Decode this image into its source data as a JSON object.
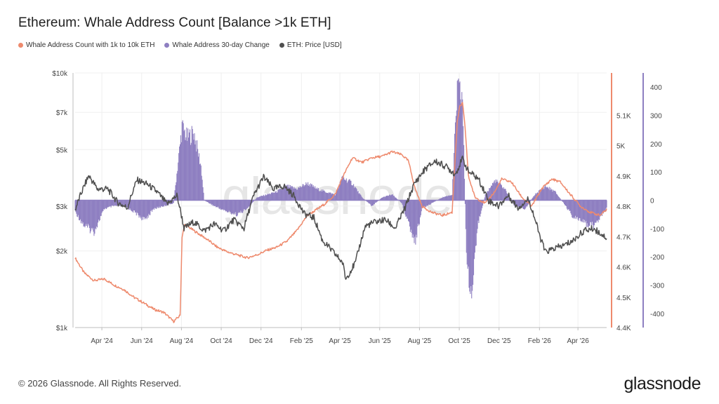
{
  "title": "Ethereum: Whale Address Count [Balance >1k ETH]",
  "legend": [
    {
      "label": "Whale Address Count with 1k to 10k ETH",
      "color": "#ee8a6d"
    },
    {
      "label": "Whale Address 30-day Change",
      "color": "#8e7fc1"
    },
    {
      "label": "ETH: Price [USD]",
      "color": "#4f4f4f"
    }
  ],
  "footer": {
    "copyright": "© 2026 Glassnode. All Rights Reserved.",
    "brand": "glassnode"
  },
  "watermark": "glassnode",
  "chart_data": {
    "type": "line",
    "x_labels": [
      "Apr '24",
      "Jun '24",
      "Aug '24",
      "Oct '24",
      "Dec '24",
      "Feb '25",
      "Apr '25",
      "Jun '25",
      "Aug '25",
      "Oct '25",
      "Dec '25",
      "Feb '26",
      "Apr '26"
    ],
    "x_label_dates": [
      "2024-04-01",
      "2024-06-01",
      "2024-08-01",
      "2024-10-01",
      "2024-12-01",
      "2025-02-01",
      "2025-04-01",
      "2025-06-01",
      "2025-08-01",
      "2025-10-01",
      "2025-12-01",
      "2026-02-01",
      "2026-04-01"
    ],
    "x_range": [
      "2024-02-20",
      "2026-05-15"
    ],
    "axes": {
      "price": {
        "position": "left",
        "scale": "log",
        "range": [
          1000,
          10000
        ],
        "tick_values": [
          1000,
          2000,
          3000,
          5000,
          7000,
          10000
        ],
        "tick_labels": [
          "$1k",
          "$2k",
          "$3k",
          "$5k",
          "$7k",
          "$10k"
        ]
      },
      "count": {
        "position": "right",
        "scale": "linear",
        "range": [
          4400,
          5240
        ],
        "tick_values": [
          4400,
          4500,
          4600,
          4700,
          4800,
          4900,
          5000,
          5100
        ],
        "tick_labels": [
          "4.4K",
          "4.5K",
          "4.6K",
          "4.7K",
          "4.8K",
          "4.9K",
          "5K",
          "5.1K"
        ],
        "color": "#ee8a6d"
      },
      "change": {
        "position": "right",
        "scale": "linear",
        "range": [
          -450,
          450
        ],
        "tick_values": [
          -400,
          -300,
          -200,
          -100,
          0,
          100,
          200,
          300,
          400
        ],
        "tick_labels": [
          "-400",
          "-300",
          "-200",
          "-100",
          "0",
          "100",
          "200",
          "300",
          "400"
        ],
        "color": "#8e7fc1"
      }
    },
    "grid": true,
    "legend_position": "top-left",
    "series": [
      {
        "name": "Whale Address Count with 1k to 10k ETH",
        "axis": "count",
        "style": "line",
        "color": "#ee8a6d",
        "points": [
          [
            "2024-02-20",
            4630
          ],
          [
            "2024-03-05",
            4580
          ],
          [
            "2024-03-20",
            4555
          ],
          [
            "2024-04-05",
            4560
          ],
          [
            "2024-04-20",
            4540
          ],
          [
            "2024-05-05",
            4525
          ],
          [
            "2024-05-20",
            4500
          ],
          [
            "2024-06-05",
            4480
          ],
          [
            "2024-06-20",
            4460
          ],
          [
            "2024-07-05",
            4450
          ],
          [
            "2024-07-20",
            4420
          ],
          [
            "2024-07-30",
            4440
          ],
          [
            "2024-08-02",
            4700
          ],
          [
            "2024-08-06",
            4740
          ],
          [
            "2024-08-20",
            4720
          ],
          [
            "2024-09-10",
            4690
          ],
          [
            "2024-09-25",
            4665
          ],
          [
            "2024-10-10",
            4650
          ],
          [
            "2024-10-25",
            4640
          ],
          [
            "2024-11-10",
            4630
          ],
          [
            "2024-11-25",
            4640
          ],
          [
            "2024-12-10",
            4655
          ],
          [
            "2024-12-25",
            4665
          ],
          [
            "2025-01-10",
            4685
          ],
          [
            "2025-01-25",
            4720
          ],
          [
            "2025-02-10",
            4770
          ],
          [
            "2025-02-25",
            4790
          ],
          [
            "2025-03-10",
            4810
          ],
          [
            "2025-03-25",
            4840
          ],
          [
            "2025-04-05",
            4895
          ],
          [
            "2025-04-20",
            4960
          ],
          [
            "2025-05-05",
            4945
          ],
          [
            "2025-05-20",
            4960
          ],
          [
            "2025-06-05",
            4965
          ],
          [
            "2025-06-20",
            4980
          ],
          [
            "2025-07-05",
            4970
          ],
          [
            "2025-07-15",
            4950
          ],
          [
            "2025-07-25",
            4860
          ],
          [
            "2025-08-05",
            4800
          ],
          [
            "2025-08-20",
            4780
          ],
          [
            "2025-09-05",
            4770
          ],
          [
            "2025-09-20",
            4780
          ],
          [
            "2025-09-28",
            5080
          ],
          [
            "2025-10-02",
            5130
          ],
          [
            "2025-10-06",
            5140
          ],
          [
            "2025-10-10",
            5060
          ],
          [
            "2025-10-15",
            4900
          ],
          [
            "2025-10-25",
            4830
          ],
          [
            "2025-11-10",
            4810
          ],
          [
            "2025-11-25",
            4850
          ],
          [
            "2025-12-05",
            4890
          ],
          [
            "2025-12-20",
            4880
          ],
          [
            "2026-01-05",
            4830
          ],
          [
            "2026-01-20",
            4800
          ],
          [
            "2026-02-05",
            4860
          ],
          [
            "2026-02-20",
            4890
          ],
          [
            "2026-03-05",
            4880
          ],
          [
            "2026-03-20",
            4840
          ],
          [
            "2026-04-05",
            4800
          ],
          [
            "2026-04-20",
            4780
          ],
          [
            "2026-05-05",
            4770
          ],
          [
            "2026-05-15",
            4790
          ]
        ]
      },
      {
        "name": "Whale Address 30-day Change",
        "axis": "change",
        "style": "bars",
        "color": "#8e7fc1",
        "points": [
          [
            "2024-02-20",
            -40
          ],
          [
            "2024-03-05",
            -90
          ],
          [
            "2024-03-20",
            -110
          ],
          [
            "2024-04-05",
            -30
          ],
          [
            "2024-04-20",
            -20
          ],
          [
            "2024-05-05",
            -20
          ],
          [
            "2024-05-20",
            -40
          ],
          [
            "2024-06-05",
            -70
          ],
          [
            "2024-06-20",
            -30
          ],
          [
            "2024-07-05",
            -20
          ],
          [
            "2024-07-20",
            -10
          ],
          [
            "2024-08-02",
            260
          ],
          [
            "2024-08-10",
            220
          ],
          [
            "2024-08-20",
            240
          ],
          [
            "2024-08-31",
            120
          ],
          [
            "2024-09-05",
            0
          ],
          [
            "2024-09-20",
            -20
          ],
          [
            "2024-10-10",
            -40
          ],
          [
            "2024-10-25",
            -50
          ],
          [
            "2024-11-10",
            -30
          ],
          [
            "2024-11-25",
            10
          ],
          [
            "2024-12-10",
            20
          ],
          [
            "2024-12-25",
            30
          ],
          [
            "2025-01-10",
            50
          ],
          [
            "2025-01-25",
            40
          ],
          [
            "2025-02-10",
            60
          ],
          [
            "2025-02-25",
            40
          ],
          [
            "2025-03-10",
            30
          ],
          [
            "2025-03-25",
            20
          ],
          [
            "2025-04-05",
            80
          ],
          [
            "2025-04-20",
            60
          ],
          [
            "2025-05-05",
            10
          ],
          [
            "2025-05-20",
            -20
          ],
          [
            "2025-06-05",
            10
          ],
          [
            "2025-06-20",
            20
          ],
          [
            "2025-07-05",
            -10
          ],
          [
            "2025-07-15",
            -80
          ],
          [
            "2025-07-25",
            -150
          ],
          [
            "2025-08-05",
            -30
          ],
          [
            "2025-08-20",
            -10
          ],
          [
            "2025-09-05",
            10
          ],
          [
            "2025-09-20",
            20
          ],
          [
            "2025-09-28",
            390
          ],
          [
            "2025-10-06",
            360
          ],
          [
            "2025-10-12",
            -200
          ],
          [
            "2025-10-20",
            -350
          ],
          [
            "2025-10-30",
            -80
          ],
          [
            "2025-11-10",
            20
          ],
          [
            "2025-11-25",
            70
          ],
          [
            "2025-12-10",
            40
          ],
          [
            "2025-12-25",
            -20
          ],
          [
            "2026-01-10",
            -30
          ],
          [
            "2026-01-25",
            20
          ],
          [
            "2026-02-10",
            50
          ],
          [
            "2026-02-25",
            30
          ],
          [
            "2026-03-10",
            -10
          ],
          [
            "2026-03-25",
            -60
          ],
          [
            "2026-04-10",
            -80
          ],
          [
            "2026-04-25",
            -90
          ],
          [
            "2026-05-15",
            -30
          ]
        ]
      },
      {
        "name": "ETH: Price [USD]",
        "axis": "price",
        "style": "line",
        "color": "#4f4f4f",
        "points": [
          [
            "2024-02-20",
            2900
          ],
          [
            "2024-03-01",
            3400
          ],
          [
            "2024-03-12",
            3950
          ],
          [
            "2024-03-25",
            3500
          ],
          [
            "2024-04-10",
            3500
          ],
          [
            "2024-04-25",
            3100
          ],
          [
            "2024-05-10",
            2950
          ],
          [
            "2024-05-25",
            3800
          ],
          [
            "2024-06-10",
            3650
          ],
          [
            "2024-06-25",
            3400
          ],
          [
            "2024-07-10",
            3050
          ],
          [
            "2024-07-25",
            3300
          ],
          [
            "2024-08-05",
            2450
          ],
          [
            "2024-08-20",
            2600
          ],
          [
            "2024-09-05",
            2400
          ],
          [
            "2024-09-20",
            2550
          ],
          [
            "2024-10-05",
            2400
          ],
          [
            "2024-10-20",
            2650
          ],
          [
            "2024-11-05",
            2450
          ],
          [
            "2024-11-20",
            3300
          ],
          [
            "2024-12-05",
            3900
          ],
          [
            "2024-12-20",
            3500
          ],
          [
            "2025-01-05",
            3600
          ],
          [
            "2025-01-20",
            3300
          ],
          [
            "2025-02-05",
            2800
          ],
          [
            "2025-02-20",
            2700
          ],
          [
            "2025-03-05",
            2200
          ],
          [
            "2025-03-20",
            2000
          ],
          [
            "2025-04-05",
            1800
          ],
          [
            "2025-04-10",
            1550
          ],
          [
            "2025-04-25",
            1800
          ],
          [
            "2025-05-10",
            2500
          ],
          [
            "2025-05-25",
            2600
          ],
          [
            "2025-06-10",
            2650
          ],
          [
            "2025-06-25",
            2450
          ],
          [
            "2025-07-10",
            2950
          ],
          [
            "2025-07-25",
            3700
          ],
          [
            "2025-08-10",
            4200
          ],
          [
            "2025-08-25",
            4500
          ],
          [
            "2025-09-10",
            4300
          ],
          [
            "2025-09-25",
            4000
          ],
          [
            "2025-10-06",
            4600
          ],
          [
            "2025-10-15",
            4100
          ],
          [
            "2025-10-30",
            3850
          ],
          [
            "2025-11-15",
            3150
          ],
          [
            "2025-11-30",
            3000
          ],
          [
            "2025-12-15",
            3300
          ],
          [
            "2025-12-30",
            2950
          ],
          [
            "2026-01-15",
            3200
          ],
          [
            "2026-02-01",
            2300
          ],
          [
            "2026-02-10",
            1980
          ],
          [
            "2026-02-25",
            2050
          ],
          [
            "2026-03-10",
            2100
          ],
          [
            "2026-03-25",
            2200
          ],
          [
            "2026-04-10",
            2400
          ],
          [
            "2026-04-25",
            2450
          ],
          [
            "2026-05-05",
            2350
          ],
          [
            "2026-05-15",
            2250
          ]
        ]
      }
    ]
  }
}
